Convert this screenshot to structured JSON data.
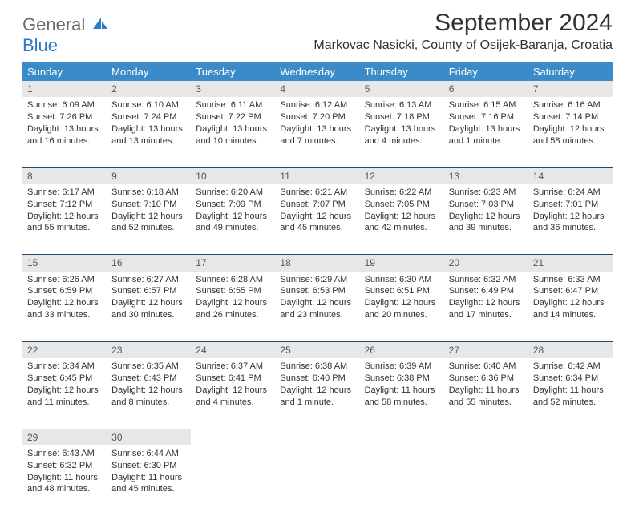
{
  "brand": {
    "part1": "General",
    "part2": "Blue"
  },
  "title": "September 2024",
  "location": "Markovac Nasicki, County of Osijek-Baranja, Croatia",
  "weekday_headers": [
    "Sunday",
    "Monday",
    "Tuesday",
    "Wednesday",
    "Thursday",
    "Friday",
    "Saturday"
  ],
  "colors": {
    "header_bg": "#3b8bc9",
    "header_fg": "#ffffff",
    "daynum_bg": "#e7e7e7",
    "rule": "#234a6d",
    "logo_gray": "#6b6b6b",
    "logo_blue": "#2d7cc1"
  },
  "weeks": [
    [
      {
        "n": "1",
        "sr": "Sunrise: 6:09 AM",
        "ss": "Sunset: 7:26 PM",
        "d1": "Daylight: 13 hours",
        "d2": "and 16 minutes."
      },
      {
        "n": "2",
        "sr": "Sunrise: 6:10 AM",
        "ss": "Sunset: 7:24 PM",
        "d1": "Daylight: 13 hours",
        "d2": "and 13 minutes."
      },
      {
        "n": "3",
        "sr": "Sunrise: 6:11 AM",
        "ss": "Sunset: 7:22 PM",
        "d1": "Daylight: 13 hours",
        "d2": "and 10 minutes."
      },
      {
        "n": "4",
        "sr": "Sunrise: 6:12 AM",
        "ss": "Sunset: 7:20 PM",
        "d1": "Daylight: 13 hours",
        "d2": "and 7 minutes."
      },
      {
        "n": "5",
        "sr": "Sunrise: 6:13 AM",
        "ss": "Sunset: 7:18 PM",
        "d1": "Daylight: 13 hours",
        "d2": "and 4 minutes."
      },
      {
        "n": "6",
        "sr": "Sunrise: 6:15 AM",
        "ss": "Sunset: 7:16 PM",
        "d1": "Daylight: 13 hours",
        "d2": "and 1 minute."
      },
      {
        "n": "7",
        "sr": "Sunrise: 6:16 AM",
        "ss": "Sunset: 7:14 PM",
        "d1": "Daylight: 12 hours",
        "d2": "and 58 minutes."
      }
    ],
    [
      {
        "n": "8",
        "sr": "Sunrise: 6:17 AM",
        "ss": "Sunset: 7:12 PM",
        "d1": "Daylight: 12 hours",
        "d2": "and 55 minutes."
      },
      {
        "n": "9",
        "sr": "Sunrise: 6:18 AM",
        "ss": "Sunset: 7:10 PM",
        "d1": "Daylight: 12 hours",
        "d2": "and 52 minutes."
      },
      {
        "n": "10",
        "sr": "Sunrise: 6:20 AM",
        "ss": "Sunset: 7:09 PM",
        "d1": "Daylight: 12 hours",
        "d2": "and 49 minutes."
      },
      {
        "n": "11",
        "sr": "Sunrise: 6:21 AM",
        "ss": "Sunset: 7:07 PM",
        "d1": "Daylight: 12 hours",
        "d2": "and 45 minutes."
      },
      {
        "n": "12",
        "sr": "Sunrise: 6:22 AM",
        "ss": "Sunset: 7:05 PM",
        "d1": "Daylight: 12 hours",
        "d2": "and 42 minutes."
      },
      {
        "n": "13",
        "sr": "Sunrise: 6:23 AM",
        "ss": "Sunset: 7:03 PM",
        "d1": "Daylight: 12 hours",
        "d2": "and 39 minutes."
      },
      {
        "n": "14",
        "sr": "Sunrise: 6:24 AM",
        "ss": "Sunset: 7:01 PM",
        "d1": "Daylight: 12 hours",
        "d2": "and 36 minutes."
      }
    ],
    [
      {
        "n": "15",
        "sr": "Sunrise: 6:26 AM",
        "ss": "Sunset: 6:59 PM",
        "d1": "Daylight: 12 hours",
        "d2": "and 33 minutes."
      },
      {
        "n": "16",
        "sr": "Sunrise: 6:27 AM",
        "ss": "Sunset: 6:57 PM",
        "d1": "Daylight: 12 hours",
        "d2": "and 30 minutes."
      },
      {
        "n": "17",
        "sr": "Sunrise: 6:28 AM",
        "ss": "Sunset: 6:55 PM",
        "d1": "Daylight: 12 hours",
        "d2": "and 26 minutes."
      },
      {
        "n": "18",
        "sr": "Sunrise: 6:29 AM",
        "ss": "Sunset: 6:53 PM",
        "d1": "Daylight: 12 hours",
        "d2": "and 23 minutes."
      },
      {
        "n": "19",
        "sr": "Sunrise: 6:30 AM",
        "ss": "Sunset: 6:51 PM",
        "d1": "Daylight: 12 hours",
        "d2": "and 20 minutes."
      },
      {
        "n": "20",
        "sr": "Sunrise: 6:32 AM",
        "ss": "Sunset: 6:49 PM",
        "d1": "Daylight: 12 hours",
        "d2": "and 17 minutes."
      },
      {
        "n": "21",
        "sr": "Sunrise: 6:33 AM",
        "ss": "Sunset: 6:47 PM",
        "d1": "Daylight: 12 hours",
        "d2": "and 14 minutes."
      }
    ],
    [
      {
        "n": "22",
        "sr": "Sunrise: 6:34 AM",
        "ss": "Sunset: 6:45 PM",
        "d1": "Daylight: 12 hours",
        "d2": "and 11 minutes."
      },
      {
        "n": "23",
        "sr": "Sunrise: 6:35 AM",
        "ss": "Sunset: 6:43 PM",
        "d1": "Daylight: 12 hours",
        "d2": "and 8 minutes."
      },
      {
        "n": "24",
        "sr": "Sunrise: 6:37 AM",
        "ss": "Sunset: 6:41 PM",
        "d1": "Daylight: 12 hours",
        "d2": "and 4 minutes."
      },
      {
        "n": "25",
        "sr": "Sunrise: 6:38 AM",
        "ss": "Sunset: 6:40 PM",
        "d1": "Daylight: 12 hours",
        "d2": "and 1 minute."
      },
      {
        "n": "26",
        "sr": "Sunrise: 6:39 AM",
        "ss": "Sunset: 6:38 PM",
        "d1": "Daylight: 11 hours",
        "d2": "and 58 minutes."
      },
      {
        "n": "27",
        "sr": "Sunrise: 6:40 AM",
        "ss": "Sunset: 6:36 PM",
        "d1": "Daylight: 11 hours",
        "d2": "and 55 minutes."
      },
      {
        "n": "28",
        "sr": "Sunrise: 6:42 AM",
        "ss": "Sunset: 6:34 PM",
        "d1": "Daylight: 11 hours",
        "d2": "and 52 minutes."
      }
    ],
    [
      {
        "n": "29",
        "sr": "Sunrise: 6:43 AM",
        "ss": "Sunset: 6:32 PM",
        "d1": "Daylight: 11 hours",
        "d2": "and 48 minutes."
      },
      {
        "n": "30",
        "sr": "Sunrise: 6:44 AM",
        "ss": "Sunset: 6:30 PM",
        "d1": "Daylight: 11 hours",
        "d2": "and 45 minutes."
      },
      null,
      null,
      null,
      null,
      null
    ]
  ]
}
